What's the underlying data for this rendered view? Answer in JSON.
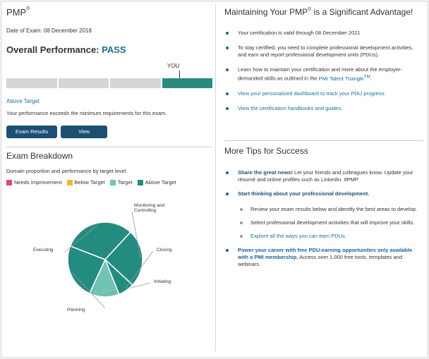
{
  "certification": {
    "name": "PMP",
    "mark": "®"
  },
  "exam_date": "Date of Exam: 08 December 2018",
  "overall": {
    "label": "Overall Performance:",
    "result": "PASS"
  },
  "performance_bar": {
    "you_label": "YOU",
    "segments": 4,
    "active_segment": 4
  },
  "rating": {
    "label": "Above Target",
    "description": "Your performance exceeds the minimum requirements for this exam."
  },
  "buttons": {
    "results_pdf": "Exam Results PDF",
    "certificate": "View Certificate"
  },
  "breakdown": {
    "title": "Exam Breakdown",
    "subtitle": "Domain proportion and performance by target level.",
    "legend": [
      {
        "label": "Needs Improvement",
        "color": "#e04a6e"
      },
      {
        "label": "Below Target",
        "color": "#f2b632"
      },
      {
        "label": "Target",
        "color": "#72c3b2"
      },
      {
        "label": "Above Target",
        "color": "#248b80"
      }
    ]
  },
  "chart_data": {
    "type": "pie",
    "slices": [
      {
        "label": "Initiating",
        "value": 13,
        "level": "Target",
        "color": "#72c3b2"
      },
      {
        "label": "Planning",
        "value": 24,
        "level": "Above Target",
        "color": "#248b80"
      },
      {
        "label": "Executing",
        "value": 31,
        "level": "Above Target",
        "color": "#248b80"
      },
      {
        "label": "Monitoring and Controlling",
        "value": 25,
        "level": "Above Target",
        "color": "#248b80"
      },
      {
        "label": "Closing",
        "value": 7,
        "level": "Above Target",
        "color": "#248b80"
      }
    ]
  },
  "maintain": {
    "title_pre": "Maintaining Your PMP",
    "title_mark": "®",
    "title_post": " is a Significant Advantage!",
    "items": {
      "valid": "Your certification is valid through 08 December 2021",
      "stay": "To stay certified, you need to complete professional development activities, and earn and report professional development units (PDUs).",
      "learn_pre": "Learn how to maintain your certification and more about the employer-demanded skills as outlined in the ",
      "learn_link": "PMI Talent Triangle",
      "learn_tm": "TM",
      "learn_post": ".",
      "dashboard": "View your personalized dashboard to track your PDU progress.",
      "handbooks": "View the certification handbooks and guides."
    }
  },
  "tips": {
    "title": "More Tips for Success",
    "share_bold": "Share the great news!",
    "share_text": " Let your friends and colleagues know. Update your résumé and online profiles such as LinkedIn. #PMP",
    "dev_bold": "Start thinking about your professional development.",
    "sub": {
      "review": "Review your exam results below and identify the best areas to develop.",
      "select": "Select professional development activities that will improve your skills.",
      "explore": "Explore all the ways you can earn PDUs."
    },
    "power_bold": "Power your career with free PDU-earning opportunities only available with a PMI membership.",
    "power_text": " Access over 1,000 free tools, templates and webinars."
  }
}
